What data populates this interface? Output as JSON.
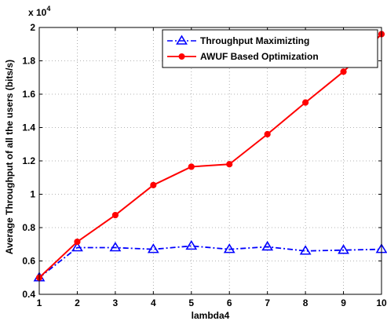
{
  "chart_data": {
    "type": "line",
    "xlabel": "lambda4",
    "ylabel": "Average Throughput of all the users (bits/s)",
    "exponent_label": "x 10",
    "exponent_power": "4",
    "x": [
      1,
      2,
      3,
      4,
      5,
      6,
      7,
      8,
      9,
      10
    ],
    "xlim": [
      1,
      10
    ],
    "ylim": [
      0.4,
      2.0
    ],
    "xticks": [
      "1",
      "2",
      "3",
      "4",
      "5",
      "6",
      "7",
      "8",
      "9",
      "10"
    ],
    "yticks": [
      "0.4",
      "0.6",
      "0.8",
      "1",
      "1.2",
      "1.4",
      "1.6",
      "1.8",
      "2"
    ],
    "ytick_values": [
      0.4,
      0.6,
      0.8,
      1.0,
      1.2,
      1.4,
      1.6,
      1.8,
      2.0
    ],
    "grid": true,
    "legend_position": "top-right",
    "series": [
      {
        "name": "Throughput Maximizting",
        "color": "#0000ff",
        "line_style": "dash-dot",
        "marker": "triangle",
        "values": [
          0.5,
          0.68,
          0.68,
          0.67,
          0.69,
          0.67,
          0.685,
          0.66,
          0.665,
          0.67
        ]
      },
      {
        "name": "AWUF Based Optimization",
        "color": "#ff0000",
        "line_style": "solid",
        "marker": "circle",
        "values": [
          0.5,
          0.715,
          0.875,
          1.055,
          1.165,
          1.18,
          1.36,
          1.55,
          1.735,
          1.96
        ]
      }
    ]
  }
}
